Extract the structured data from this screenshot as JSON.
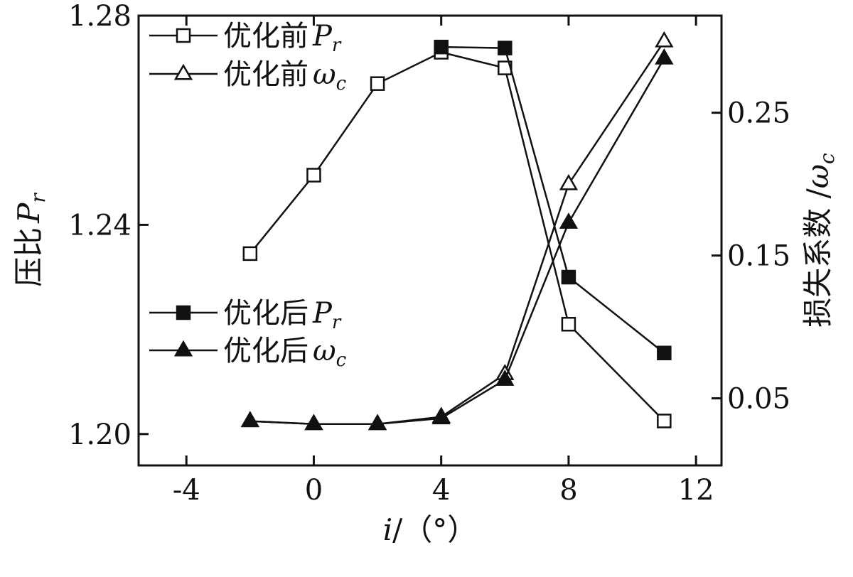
{
  "chart_data": {
    "type": "line",
    "xlabel": {
      "var": "i",
      "unit": "/（°）"
    },
    "ylabel_left": {
      "prefix": "压比",
      "var": "P",
      "sub": "r"
    },
    "ylabel_right": {
      "prefix": "损失系数 /",
      "var": "ω",
      "sub": "c"
    },
    "xlim": [
      -5.5,
      12.8
    ],
    "x_ticks": [
      "-4",
      "0",
      "4",
      "8",
      "12"
    ],
    "x_tick_values": [
      -4,
      0,
      4,
      8,
      12
    ],
    "ylim_left": [
      1.194,
      1.28
    ],
    "y_left_ticks": [
      "1.20",
      "1.24",
      "1.28"
    ],
    "y_left_tick_values": [
      1.2,
      1.24,
      1.28
    ],
    "ylim_right": [
      0.003,
      0.318
    ],
    "y_right_ticks": [
      "0.05",
      "0.15",
      "0.25"
    ],
    "y_right_tick_values": [
      0.05,
      0.15,
      0.25
    ],
    "grid": false,
    "series": [
      {
        "name": "优化前 P_r",
        "label": "优化前",
        "var": "P",
        "sub": "r",
        "axis": "left",
        "marker": "square-open",
        "x": [
          -2,
          0,
          2,
          4,
          6,
          8,
          11
        ],
        "y": [
          1.2345,
          1.2495,
          1.267,
          1.273,
          1.27,
          1.221,
          1.2025
        ]
      },
      {
        "name": "优化前 ω_c",
        "label": "优化前",
        "var": "ω",
        "sub": "c",
        "axis": "right",
        "marker": "triangle-open",
        "x": [
          -2,
          0,
          2,
          4,
          6,
          8,
          11
        ],
        "y": [
          0.034,
          0.032,
          0.032,
          0.037,
          0.067,
          0.2,
          0.3
        ]
      },
      {
        "name": "优化后 P_r",
        "label": "优化后",
        "var": "P",
        "sub": "r",
        "axis": "left",
        "marker": "square-filled",
        "x": [
          4,
          6,
          8,
          11
        ],
        "y": [
          1.274,
          1.2738,
          1.23,
          1.2155
        ]
      },
      {
        "name": "优化后 ω_c",
        "label": "优化后",
        "var": "ω",
        "sub": "c",
        "axis": "right",
        "marker": "triangle-filled",
        "x": [
          -2,
          0,
          2,
          4,
          6,
          8,
          11
        ],
        "y": [
          0.034,
          0.032,
          0.032,
          0.036,
          0.063,
          0.173,
          0.288
        ]
      }
    ]
  }
}
